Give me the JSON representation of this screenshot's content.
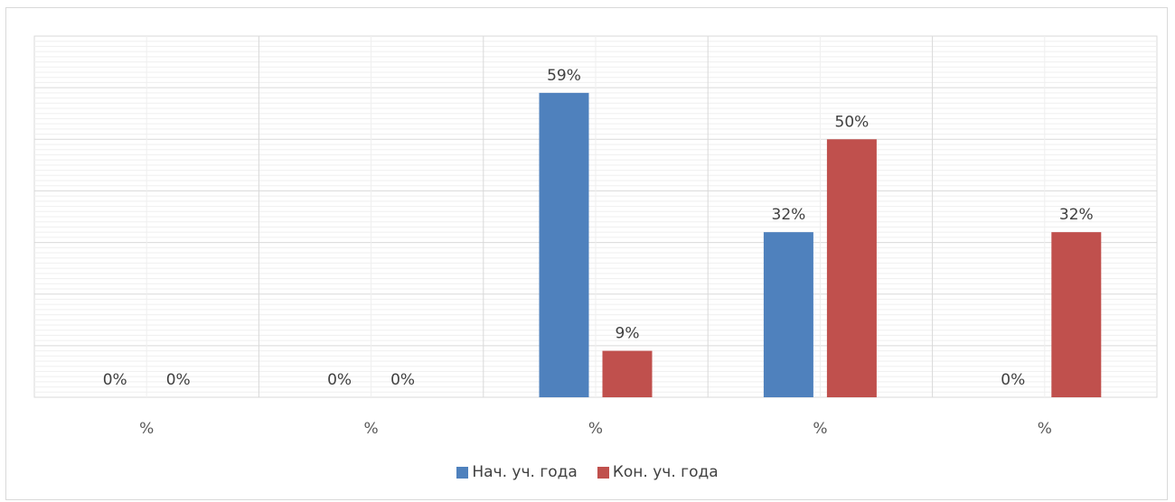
{
  "chart_data": {
    "type": "bar",
    "title": "",
    "xlabel": "",
    "ylabel": "",
    "categories": [
      "%",
      "%",
      "%",
      "%",
      "%"
    ],
    "series": [
      {
        "name": "Нач. уч. года",
        "color": "#4f81bd",
        "values": [
          0,
          0,
          59,
          32,
          0
        ],
        "labels": [
          "0%",
          "0%",
          "59%",
          "32%",
          "0%"
        ]
      },
      {
        "name": "Кон. уч. года",
        "color": "#c0504d",
        "values": [
          0,
          0,
          9,
          50,
          32
        ],
        "labels": [
          "0%",
          "0%",
          "9%",
          "50%",
          "32%"
        ]
      }
    ],
    "ylim": [
      0,
      70
    ],
    "gridlines": true,
    "legend_position": "bottom",
    "data_labels": true
  }
}
